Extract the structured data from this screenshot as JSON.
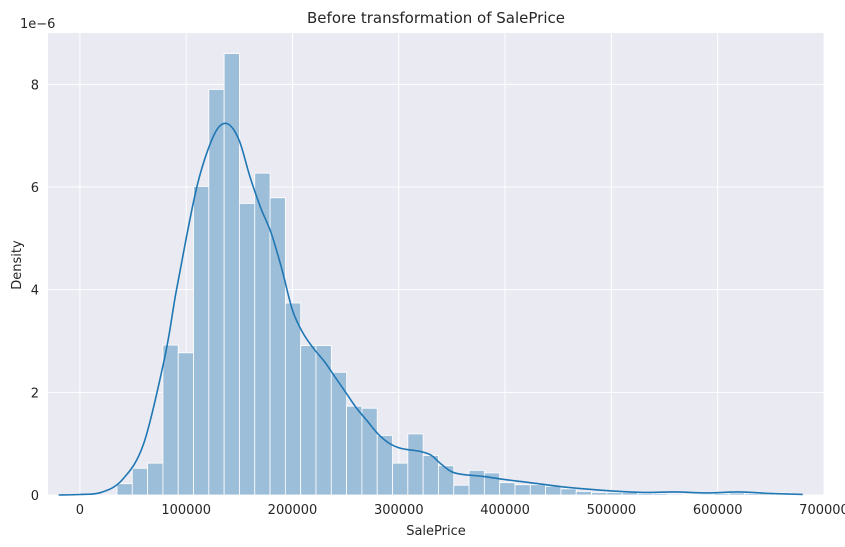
{
  "chart_data": {
    "type": "histogram",
    "title": "Before transformation of SalePrice",
    "xlabel": "SalePrice",
    "ylabel": "Density",
    "y_scale_note": "1e−6",
    "xlim": [
      -30000,
      700000
    ],
    "ylim": [
      0,
      9.0
    ],
    "x_ticks": [
      0,
      100000,
      200000,
      300000,
      400000,
      500000,
      600000,
      700000
    ],
    "x_tick_labels": [
      "0",
      "100000",
      "200000",
      "300000",
      "400000",
      "500000",
      "600000",
      "700000"
    ],
    "y_ticks": [
      0,
      2,
      4,
      6,
      8
    ],
    "y_tick_labels": [
      "0",
      "2",
      "4",
      "6",
      "8"
    ],
    "grid": true,
    "bins": {
      "start": 34900,
      "width": 14400,
      "densities": [
        0.22,
        0.52,
        0.62,
        2.92,
        2.77,
        6.01,
        7.9,
        8.6,
        5.68,
        6.27,
        5.79,
        3.74,
        2.91,
        2.91,
        2.39,
        1.73,
        1.69,
        1.16,
        0.62,
        1.19,
        0.77,
        0.57,
        0.19,
        0.48,
        0.43,
        0.24,
        0.2,
        0.2,
        0.17,
        0.12,
        0.07,
        0.05,
        0.05,
        0.05,
        0.03,
        0.03,
        0.02,
        0.01,
        0.02,
        0.03,
        0.04,
        0.03,
        0.05,
        0.05
      ]
    },
    "kde": {
      "x": [
        -20000,
        0,
        20000,
        40000,
        60000,
        80000,
        90000,
        100000,
        110000,
        120000,
        130000,
        140000,
        150000,
        160000,
        170000,
        180000,
        190000,
        200000,
        210000,
        220000,
        230000,
        240000,
        250000,
        260000,
        270000,
        280000,
        290000,
        300000,
        310000,
        320000,
        330000,
        340000,
        350000,
        360000,
        380000,
        400000,
        420000,
        450000,
        480000,
        500000,
        530000,
        560000,
        590000,
        620000,
        650000,
        680000
      ],
      "y": [
        0.0,
        0.01,
        0.05,
        0.3,
        1.0,
        2.7,
        3.9,
        5.0,
        6.0,
        6.7,
        7.15,
        7.22,
        6.9,
        6.2,
        5.6,
        5.1,
        4.4,
        3.6,
        3.15,
        2.85,
        2.6,
        2.3,
        2.0,
        1.7,
        1.45,
        1.2,
        1.02,
        0.92,
        0.88,
        0.85,
        0.78,
        0.6,
        0.45,
        0.4,
        0.36,
        0.3,
        0.25,
        0.17,
        0.11,
        0.08,
        0.05,
        0.06,
        0.04,
        0.06,
        0.03,
        0.01
      ]
    },
    "colors": {
      "background": "#eaeaf2",
      "grid": "#ffffff",
      "bar_fill": "#9dbed9",
      "bar_edge": "#ffffff",
      "kde_line": "#1f77b4"
    }
  }
}
